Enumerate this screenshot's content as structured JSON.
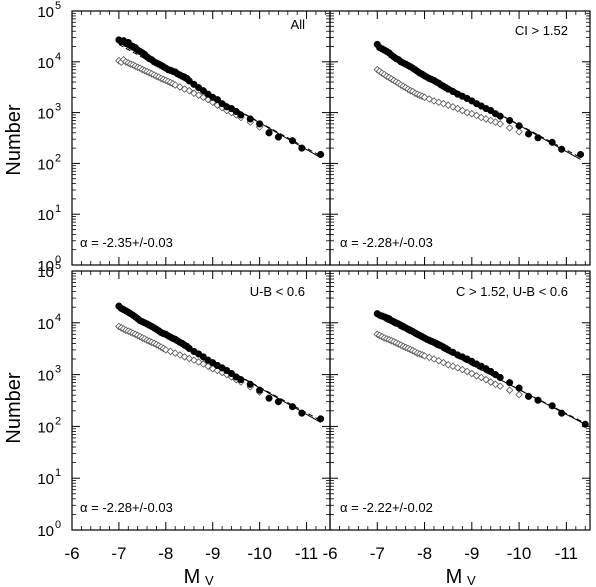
{
  "figure": {
    "ylabel": "Number",
    "xlabel_main": "M",
    "xlabel_sub": "V"
  },
  "chart_data": [
    {
      "type": "scatter",
      "panel_label": "All",
      "alpha_label": "α = -2.35+/-0.03",
      "xlabel": "MV",
      "ylabel": "Number",
      "xlim": [
        -6,
        -11.5
      ],
      "ylim": [
        1,
        100000
      ],
      "yscale": "log",
      "x_ticks": [
        "-6",
        "-7",
        "-8",
        "-9",
        "-10",
        "-11"
      ],
      "y_ticks": [
        "10^0",
        "10^1",
        "10^2",
        "10^3",
        "10^4",
        "10^5"
      ],
      "series": [
        {
          "marker": "filled-circle",
          "x": [
            -7.0,
            -7.05,
            -7.1,
            -7.15,
            -7.2,
            -7.25,
            -7.3,
            -7.35,
            -7.4,
            -7.45,
            -7.5,
            -7.55,
            -7.6,
            -7.65,
            -7.7,
            -7.75,
            -7.8,
            -7.85,
            -7.9,
            -7.95,
            -8.0,
            -8.05,
            -8.1,
            -8.15,
            -8.2,
            -8.25,
            -8.3,
            -8.35,
            -8.4,
            -8.45,
            -8.5,
            -8.6,
            -8.7,
            -8.8,
            -8.9,
            -9.0,
            -9.1,
            -9.2,
            -9.3,
            -9.4,
            -9.5,
            -9.6,
            -9.8,
            -10.0,
            -10.2,
            -10.4,
            -10.7,
            -10.9,
            -11.3
          ],
          "y": [
            27000,
            25000,
            26000,
            23000,
            24000,
            21000,
            20000,
            19000,
            17000,
            16000,
            15000,
            14000,
            12500,
            11500,
            11000,
            10000,
            9500,
            9000,
            8500,
            8000,
            7500,
            7000,
            6800,
            6500,
            6300,
            5800,
            5500,
            5200,
            5000,
            4700,
            4200,
            3600,
            3100,
            2700,
            2300,
            2000,
            1800,
            1500,
            1300,
            1200,
            1050,
            900,
            750,
            600,
            400,
            330,
            280,
            200,
            150
          ]
        },
        {
          "marker": "open-diamond",
          "x": [
            -7.0,
            -7.05,
            -7.1,
            -7.15,
            -7.2,
            -7.25,
            -7.3,
            -7.35,
            -7.4,
            -7.45,
            -7.5,
            -7.55,
            -7.6,
            -7.65,
            -7.7,
            -7.75,
            -7.8,
            -7.85,
            -7.9,
            -7.95,
            -8.0,
            -8.05,
            -8.1,
            -8.15,
            -8.2,
            -8.3,
            -8.4,
            -8.5,
            -8.6,
            -8.7,
            -8.8,
            -8.9,
            -9.0,
            -9.1,
            -9.2,
            -9.3,
            -9.4,
            -9.5,
            -9.6,
            -9.8,
            -10.0,
            -10.2
          ],
          "y": [
            10500,
            9800,
            11000,
            10000,
            9500,
            9000,
            8700,
            8200,
            7800,
            7500,
            7000,
            6700,
            6400,
            6100,
            5800,
            5500,
            5200,
            5000,
            4700,
            4500,
            4300,
            4100,
            3900,
            3700,
            3500,
            3200,
            2900,
            2700,
            2400,
            2200,
            2000,
            1800,
            1600,
            1400,
            1250,
            1100,
            1000,
            900,
            800,
            650,
            520,
            420
          ]
        }
      ],
      "fit_lines": [
        {
          "style": "solid",
          "x": [
            -7.0,
            -11.3
          ],
          "y": [
            24000,
            130
          ]
        },
        {
          "style": "dashed",
          "x": [
            -7.0,
            -11.3
          ],
          "y": [
            22000,
            140
          ]
        }
      ]
    },
    {
      "type": "scatter",
      "panel_label": "CI > 1.52",
      "alpha_label": "α = -2.28+/-0.03",
      "xlabel": "MV",
      "ylabel": "Number",
      "xlim": [
        -6,
        -11.5
      ],
      "ylim": [
        1,
        100000
      ],
      "yscale": "log",
      "x_ticks": [
        "-6",
        "-7",
        "-8",
        "-9",
        "-10",
        "-11"
      ],
      "y_ticks": [
        "10^0",
        "10^1",
        "10^2",
        "10^3",
        "10^4",
        "10^5"
      ],
      "series": [
        {
          "marker": "filled-circle",
          "x": [
            -7.0,
            -7.05,
            -7.1,
            -7.15,
            -7.2,
            -7.25,
            -7.3,
            -7.35,
            -7.4,
            -7.45,
            -7.5,
            -7.55,
            -7.6,
            -7.65,
            -7.7,
            -7.75,
            -7.8,
            -7.85,
            -7.9,
            -7.95,
            -8.0,
            -8.05,
            -8.1,
            -8.15,
            -8.2,
            -8.25,
            -8.3,
            -8.35,
            -8.4,
            -8.45,
            -8.5,
            -8.6,
            -8.7,
            -8.8,
            -8.9,
            -9.0,
            -9.1,
            -9.2,
            -9.3,
            -9.4,
            -9.5,
            -9.6,
            -9.8,
            -10.0,
            -10.2,
            -10.4,
            -10.7,
            -10.9,
            -11.3
          ],
          "y": [
            22000,
            19000,
            18000,
            17000,
            16000,
            15000,
            13500,
            12500,
            11500,
            11000,
            10000,
            9500,
            9000,
            8500,
            8000,
            7500,
            7000,
            6500,
            6000,
            5700,
            5300,
            5000,
            4700,
            4500,
            4300,
            4000,
            3800,
            3500,
            3300,
            3100,
            2900,
            2600,
            2300,
            2100,
            1900,
            1700,
            1500,
            1350,
            1200,
            1100,
            950,
            850,
            700,
            550,
            380,
            320,
            260,
            190,
            150
          ]
        },
        {
          "marker": "open-diamond",
          "x": [
            -7.0,
            -7.05,
            -7.1,
            -7.15,
            -7.2,
            -7.25,
            -7.3,
            -7.35,
            -7.4,
            -7.45,
            -7.5,
            -7.55,
            -7.6,
            -7.65,
            -7.7,
            -7.75,
            -7.8,
            -7.85,
            -7.9,
            -7.95,
            -8.0,
            -8.1,
            -8.2,
            -8.3,
            -8.4,
            -8.5,
            -8.6,
            -8.7,
            -8.8,
            -8.9,
            -9.0,
            -9.1,
            -9.2,
            -9.3,
            -9.4,
            -9.5,
            -9.6,
            -9.8,
            -10.0
          ],
          "y": [
            7000,
            6500,
            6000,
            5600,
            5200,
            4900,
            4600,
            4300,
            4000,
            3800,
            3500,
            3300,
            3100,
            2900,
            2700,
            2600,
            2400,
            2300,
            2200,
            2100,
            2000,
            1850,
            1700,
            1600,
            1500,
            1400,
            1300,
            1200,
            1100,
            1000,
            950,
            880,
            800,
            750,
            700,
            650,
            600,
            500,
            420
          ]
        }
      ],
      "fit_lines": [
        {
          "style": "solid",
          "x": [
            -7.0,
            -11.3
          ],
          "y": [
            20000,
            120
          ]
        },
        {
          "style": "dashed",
          "x": [
            -7.0,
            -11.3
          ],
          "y": [
            18000,
            130
          ]
        }
      ]
    },
    {
      "type": "scatter",
      "panel_label": "U-B < 0.6",
      "alpha_label": "α = -2.28+/-0.03",
      "xlabel": "MV",
      "ylabel": "Number",
      "xlim": [
        -6,
        -11.5
      ],
      "ylim": [
        1,
        100000
      ],
      "yscale": "log",
      "x_ticks": [
        "-6",
        "-7",
        "-8",
        "-9",
        "-10",
        "-11"
      ],
      "y_ticks": [
        "10^0",
        "10^1",
        "10^2",
        "10^3",
        "10^4",
        "10^5"
      ],
      "series": [
        {
          "marker": "filled-circle",
          "x": [
            -7.0,
            -7.05,
            -7.1,
            -7.15,
            -7.2,
            -7.25,
            -7.3,
            -7.35,
            -7.4,
            -7.45,
            -7.5,
            -7.55,
            -7.6,
            -7.65,
            -7.7,
            -7.75,
            -7.8,
            -7.85,
            -7.9,
            -7.95,
            -8.0,
            -8.05,
            -8.1,
            -8.15,
            -8.2,
            -8.25,
            -8.3,
            -8.35,
            -8.4,
            -8.45,
            -8.5,
            -8.6,
            -8.7,
            -8.8,
            -8.9,
            -9.0,
            -9.1,
            -9.2,
            -9.3,
            -9.4,
            -9.5,
            -9.6,
            -9.8,
            -10.0,
            -10.2,
            -10.4,
            -10.7,
            -10.9,
            -11.3
          ],
          "y": [
            21000,
            19000,
            18000,
            17000,
            16000,
            15000,
            14000,
            13000,
            12000,
            11000,
            10500,
            10000,
            9500,
            9000,
            8500,
            8000,
            7500,
            7000,
            6500,
            6200,
            6000,
            5600,
            5300,
            5000,
            4800,
            4500,
            4200,
            4000,
            3700,
            3500,
            3200,
            2800,
            2500,
            2200,
            1900,
            1700,
            1500,
            1350,
            1200,
            1050,
            900,
            800,
            650,
            500,
            350,
            300,
            240,
            180,
            140
          ]
        },
        {
          "marker": "open-diamond",
          "x": [
            -7.0,
            -7.05,
            -7.1,
            -7.15,
            -7.2,
            -7.25,
            -7.3,
            -7.35,
            -7.4,
            -7.45,
            -7.5,
            -7.55,
            -7.6,
            -7.65,
            -7.7,
            -7.75,
            -7.8,
            -7.85,
            -7.9,
            -7.95,
            -8.0,
            -8.1,
            -8.2,
            -8.3,
            -8.4,
            -8.5,
            -8.6,
            -8.7,
            -8.8,
            -8.9,
            -9.0,
            -9.1,
            -9.2,
            -9.3,
            -9.4,
            -9.5,
            -9.6,
            -9.8,
            -10.0
          ],
          "y": [
            8500,
            8000,
            7600,
            7200,
            6900,
            6600,
            6300,
            6000,
            5700,
            5400,
            5100,
            4900,
            4600,
            4400,
            4200,
            4000,
            3800,
            3600,
            3400,
            3200,
            3000,
            2800,
            2600,
            2400,
            2200,
            2050,
            1900,
            1750,
            1600,
            1450,
            1300,
            1200,
            1100,
            1000,
            900,
            800,
            720,
            580,
            460
          ]
        }
      ],
      "fit_lines": [
        {
          "style": "solid",
          "x": [
            -7.0,
            -11.3
          ],
          "y": [
            19000,
            120
          ]
        },
        {
          "style": "dashed",
          "x": [
            -7.0,
            -11.3
          ],
          "y": [
            17500,
            130
          ]
        }
      ]
    },
    {
      "type": "scatter",
      "panel_label": "C > 1.52, U-B < 0.6",
      "alpha_label": "α = -2.22+/-0.02",
      "xlabel": "MV",
      "ylabel": "Number",
      "xlim": [
        -6,
        -11.5
      ],
      "ylim": [
        1,
        100000
      ],
      "yscale": "log",
      "x_ticks": [
        "-6",
        "-7",
        "-8",
        "-9",
        "-10",
        "-11"
      ],
      "y_ticks": [
        "10^0",
        "10^1",
        "10^2",
        "10^3",
        "10^4",
        "10^5"
      ],
      "series": [
        {
          "marker": "filled-circle",
          "x": [
            -7.0,
            -7.05,
            -7.1,
            -7.15,
            -7.2,
            -7.25,
            -7.3,
            -7.35,
            -7.4,
            -7.45,
            -7.5,
            -7.55,
            -7.6,
            -7.65,
            -7.7,
            -7.75,
            -7.8,
            -7.85,
            -7.9,
            -7.95,
            -8.0,
            -8.05,
            -8.1,
            -8.15,
            -8.2,
            -8.25,
            -8.3,
            -8.35,
            -8.4,
            -8.45,
            -8.5,
            -8.6,
            -8.7,
            -8.8,
            -8.9,
            -9.0,
            -9.1,
            -9.2,
            -9.3,
            -9.4,
            -9.5,
            -9.6,
            -9.8,
            -10.0,
            -10.2,
            -10.4,
            -10.7,
            -10.9,
            -11.4
          ],
          "y": [
            15000,
            14000,
            13500,
            13000,
            12500,
            12000,
            11000,
            10500,
            10000,
            9500,
            9000,
            8500,
            8000,
            7600,
            7200,
            6800,
            6400,
            6000,
            5700,
            5400,
            5100,
            4800,
            4600,
            4400,
            4200,
            4000,
            3800,
            3600,
            3400,
            3200,
            3000,
            2700,
            2400,
            2200,
            2000,
            1800,
            1600,
            1450,
            1300,
            1150,
            1000,
            880,
            700,
            550,
            380,
            320,
            250,
            180,
            110
          ]
        },
        {
          "marker": "open-diamond",
          "x": [
            -7.0,
            -7.05,
            -7.1,
            -7.15,
            -7.2,
            -7.25,
            -7.3,
            -7.35,
            -7.4,
            -7.45,
            -7.5,
            -7.55,
            -7.6,
            -7.65,
            -7.7,
            -7.75,
            -7.8,
            -7.85,
            -7.9,
            -7.95,
            -8.0,
            -8.1,
            -8.2,
            -8.3,
            -8.4,
            -8.5,
            -8.6,
            -8.7,
            -8.8,
            -8.9,
            -9.0,
            -9.1,
            -9.2,
            -9.3,
            -9.4,
            -9.5,
            -9.6,
            -9.8,
            -10.0
          ],
          "y": [
            6000,
            5700,
            5400,
            5100,
            4900,
            4700,
            4500,
            4300,
            4100,
            3900,
            3700,
            3500,
            3350,
            3200,
            3050,
            2900,
            2750,
            2600,
            2500,
            2400,
            2300,
            2150,
            2000,
            1850,
            1700,
            1550,
            1450,
            1350,
            1250,
            1150,
            1050,
            950,
            880,
            800,
            720,
            650,
            600,
            500,
            410
          ]
        }
      ],
      "fit_lines": [
        {
          "style": "solid",
          "x": [
            -7.0,
            -11.4
          ],
          "y": [
            14000,
            110
          ]
        },
        {
          "style": "dashed",
          "x": [
            -7.0,
            -11.4
          ],
          "y": [
            13000,
            115
          ]
        }
      ]
    }
  ]
}
